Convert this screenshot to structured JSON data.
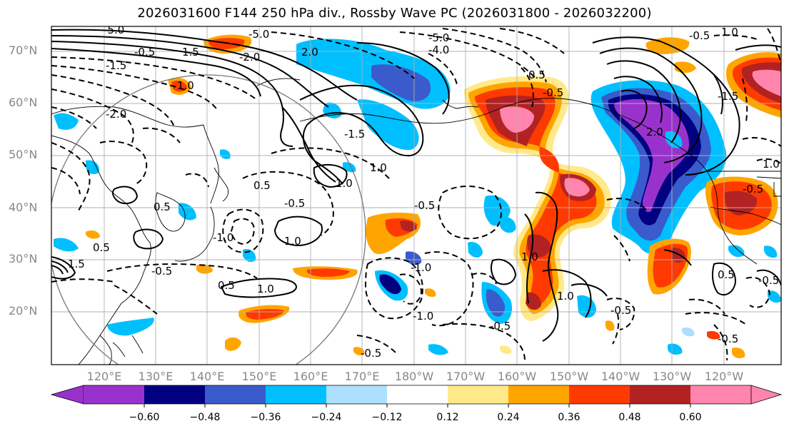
{
  "title": "2026031600 F144 250 hPa div., Rossby Wave PC (2026031800 - 2026032200)",
  "lat_labels": [
    "70°N",
    "60°N",
    "50°N",
    "40°N",
    "30°N",
    "20°N"
  ],
  "lon_labels": [
    "120°E",
    "130°E",
    "140°E",
    "150°E",
    "160°E",
    "170°E",
    "180°W",
    "170°W",
    "160°W",
    "150°W",
    "140°W",
    "130°W",
    "120°W"
  ],
  "colorbar": {
    "ticks": [
      "−0.60",
      "−0.48",
      "−0.36",
      "−0.24",
      "−0.12",
      "0.12",
      "0.24",
      "0.36",
      "0.48",
      "0.60"
    ],
    "colors": [
      "#9932CC",
      "#000080",
      "#3A5BCB",
      "#00BFFF",
      "#ADDFFF",
      "#FFFFFF",
      "#FFE98A",
      "#FFA500",
      "#FF3A00",
      "#B22222",
      "#FF85AE"
    ]
  },
  "contour_labels": [
    "-5.0",
    "-4.0",
    "-2.0",
    "-1.5",
    "-0.5",
    "1.5",
    "1.0",
    "0.5",
    "-1.0",
    "2.0",
    "-0.5",
    "1.0",
    "-0.5",
    "0.5",
    "-1.0",
    "-0.5",
    "-5.0",
    "1.0",
    "0.5",
    "-0.5",
    "-1.0",
    "0.5",
    "-0.5",
    "2.0",
    "1.0",
    "0.5"
  ]
}
